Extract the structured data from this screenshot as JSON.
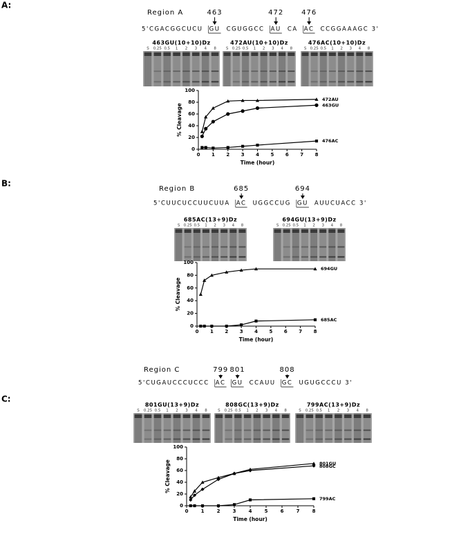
{
  "panels": [
    {
      "label": "A:",
      "region": "Region A",
      "sequence": [
        {
          "text": "5'CGACGGCUCU"
        },
        {
          "text": "GU",
          "site": "463"
        },
        {
          "text": "CGUGGCC"
        },
        {
          "text": "AU",
          "site": "472"
        },
        {
          "text": "CA"
        },
        {
          "text": "AC",
          "site": "476"
        },
        {
          "text": "CCGGAAAGC  3'"
        }
      ],
      "gels": [
        {
          "title": "463GU(10+10)Dz",
          "lanes": [
            "S",
            "0.25",
            "0.5",
            "1",
            "2",
            "3",
            "4",
            "8"
          ]
        },
        {
          "title": "472AU(10+10)Dz",
          "lanes": [
            "S",
            "0.25",
            "0.5",
            "1",
            "2",
            "3",
            "4",
            "8"
          ]
        },
        {
          "title": "476AC(10+10)Dz",
          "lanes": [
            "S",
            "0.25",
            "0.5",
            "1",
            "2",
            "3",
            "4",
            "8"
          ]
        }
      ]
    },
    {
      "label": "B:",
      "region": "Region B",
      "sequence": [
        {
          "text": "5'CUUCUCCUUCUUA"
        },
        {
          "text": "AC",
          "site": "685"
        },
        {
          "text": "UGGCCUG"
        },
        {
          "text": "GU",
          "site": "694"
        },
        {
          "text": "AUUCUACC  3'"
        }
      ],
      "gels": [
        {
          "title": "685AC(13+9)Dz",
          "lanes": [
            "S",
            "0.25",
            "0.5",
            "1",
            "2",
            "3",
            "4",
            "8"
          ]
        },
        {
          "title": "694GU(13+9)Dz",
          "lanes": [
            "S",
            "0.25",
            "0.5",
            "1",
            "2",
            "3",
            "4",
            "8"
          ]
        }
      ]
    },
    {
      "label": "C:",
      "region": "Region C",
      "sequence": [
        {
          "text": "5'CUGAUCCCUCCC"
        },
        {
          "text": "AC",
          "site": "799"
        },
        {
          "text": "GU",
          "site": "801"
        },
        {
          "text": "CCAUU"
        },
        {
          "text": "GC",
          "site": "808"
        },
        {
          "text": "UGUGCCCU  3'"
        }
      ],
      "gels": [
        {
          "title": "801GU(13+9)Dz",
          "lanes": [
            "S",
            "0.25",
            "0.5",
            "1",
            "2",
            "3",
            "4",
            "8"
          ]
        },
        {
          "title": "808GC(13+9)Dz",
          "lanes": [
            "S",
            "0.25",
            "0.5",
            "1",
            "2",
            "3",
            "4",
            "8"
          ]
        },
        {
          "title": "799AC(13+9)Dz",
          "lanes": [
            "S",
            "0.25",
            "0.5",
            "1",
            "2",
            "3",
            "4",
            "8"
          ]
        }
      ]
    }
  ],
  "chart_data": [
    {
      "type": "line",
      "xlabel": "Time (hour)",
      "ylabel": "% Cleavage",
      "x": [
        0.25,
        0.5,
        1,
        2,
        3,
        4,
        8
      ],
      "xlim": [
        0,
        8
      ],
      "xticks": [
        0,
        1,
        2,
        3,
        4,
        5,
        6,
        7,
        8
      ],
      "ylim": [
        0,
        100
      ],
      "yticks": [
        0,
        20,
        40,
        60,
        80,
        100
      ],
      "series": [
        {
          "name": "472AU",
          "color": "#000000",
          "marker": "triangle",
          "values": [
            30,
            55,
            70,
            82,
            83,
            83,
            85
          ]
        },
        {
          "name": "463GU",
          "color": "#000000",
          "marker": "circle",
          "values": [
            22,
            35,
            47,
            60,
            65,
            70,
            75
          ]
        },
        {
          "name": "476AC",
          "color": "#000000",
          "marker": "square",
          "values": [
            3,
            3,
            2,
            3,
            5,
            7,
            14
          ]
        }
      ]
    },
    {
      "type": "line",
      "xlabel": "Time (hour)",
      "ylabel": "% Cleavage",
      "x": [
        0.25,
        0.5,
        1,
        2,
        3,
        4,
        8
      ],
      "xlim": [
        0,
        8
      ],
      "xticks": [
        0,
        1,
        2,
        3,
        4,
        5,
        6,
        7,
        8
      ],
      "ylim": [
        0,
        100
      ],
      "yticks": [
        0,
        20,
        40,
        60,
        80,
        100
      ],
      "series": [
        {
          "name": "694GU",
          "color": "#000000",
          "marker": "triangle",
          "values": [
            50,
            72,
            80,
            85,
            88,
            90,
            90
          ]
        },
        {
          "name": "685AC",
          "color": "#000000",
          "marker": "square",
          "values": [
            0,
            0,
            0,
            0,
            2,
            8,
            10
          ]
        }
      ]
    },
    {
      "type": "line",
      "xlabel": "Time (hour)",
      "ylabel": "% Cleavage",
      "x": [
        0.25,
        0.5,
        1,
        2,
        3,
        4,
        8
      ],
      "xlim": [
        0,
        8
      ],
      "xticks": [
        0,
        1,
        2,
        3,
        4,
        5,
        6,
        7,
        8
      ],
      "ylim": [
        0,
        100
      ],
      "yticks": [
        0,
        20,
        40,
        60,
        80,
        100
      ],
      "series": [
        {
          "name": "801GU",
          "color": "#000000",
          "marker": "triangle",
          "values": [
            15,
            25,
            40,
            48,
            55,
            62,
            72
          ]
        },
        {
          "name": "808GC",
          "color": "#000000",
          "marker": "diamond",
          "values": [
            10,
            18,
            28,
            45,
            55,
            60,
            68
          ]
        },
        {
          "name": "799AC",
          "color": "#000000",
          "marker": "square",
          "values": [
            0,
            0,
            0,
            0,
            2,
            10,
            12
          ]
        }
      ]
    }
  ]
}
